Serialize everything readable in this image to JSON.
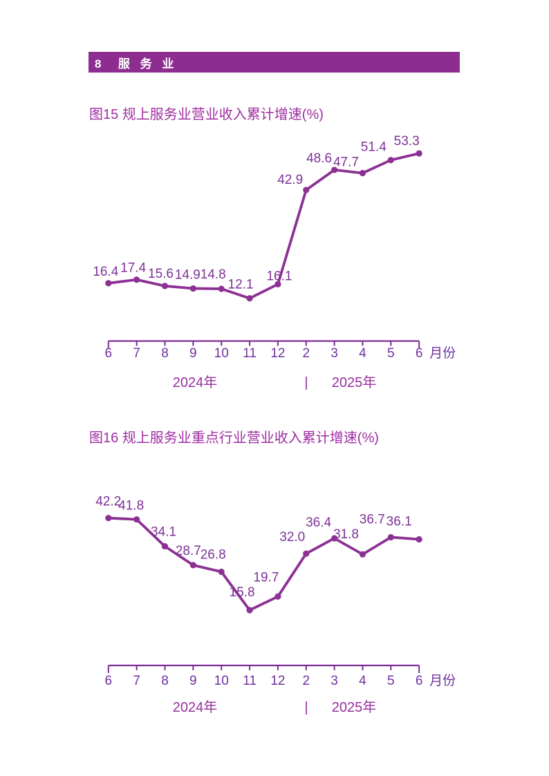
{
  "page": {
    "section_header": "8  服 务 业"
  },
  "colors": {
    "header_bar_bg": "#8D2D90",
    "header_bar_text": "#FFFFFF",
    "title_text": "#9E2DA1",
    "line": "#8C3193",
    "marker": "#8C3193",
    "data_label": "#7E3097",
    "axis": "#7C2D96",
    "axis_label": "#7030A0",
    "year_label": "#952E9E"
  },
  "chart_data": [
    {
      "type": "line",
      "title": "图15  规上服务业营业收入累计增速(%)",
      "categories": [
        "6",
        "7",
        "8",
        "9",
        "10",
        "11",
        "12",
        "2",
        "3",
        "4",
        "5",
        "6"
      ],
      "values": [
        16.4,
        17.4,
        15.6,
        14.9,
        14.8,
        12.1,
        16.1,
        42.9,
        48.6,
        47.7,
        51.4,
        53.3
      ],
      "x_axis_unit": "月份",
      "year_groups": [
        "2024年",
        "2025年"
      ],
      "year_separator": "|",
      "data_labels_shown": true,
      "grid": false,
      "legend": "none",
      "y_axis_shown": false
    },
    {
      "type": "line",
      "title": "图16  规上服务业重点行业营业收入累计增速(%)",
      "categories": [
        "6",
        "7",
        "8",
        "9",
        "10",
        "11",
        "12",
        "2",
        "3",
        "4",
        "5",
        "6"
      ],
      "values": [
        42.2,
        41.8,
        34.1,
        28.7,
        26.8,
        15.8,
        19.7,
        32.0,
        36.4,
        31.8,
        36.7,
        36.1
      ],
      "x_axis_unit": "月份",
      "year_groups": [
        "2024年",
        "2025年"
      ],
      "year_separator": "|",
      "data_labels_shown": true,
      "grid": false,
      "legend": "none",
      "y_axis_shown": false
    }
  ]
}
